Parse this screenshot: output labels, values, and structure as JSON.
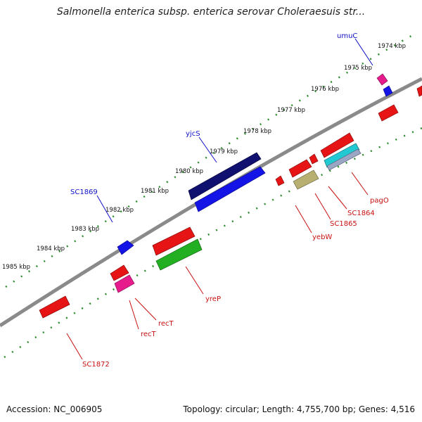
{
  "title": "Salmonella enterica subsp. enterica serovar Choleraesuis str...",
  "footer": {
    "accession": "Accession: NC_006905",
    "summary": "Topology: circular; Length: 4,755,700 bp; Genes: 4,516"
  },
  "colors": {
    "backbone": "#8a8a8a",
    "ticks": "#2e8b2e",
    "plus_label": "#1010c8",
    "minus_label": "#c81010"
  },
  "kbp_labels": [
    "1974 kbp",
    "1975 kbp",
    "1976 kbp",
    "1977 kbp",
    "1978 kbp",
    "1979 kbp",
    "1980 kbp",
    "1981 kbp",
    "1982 kbp",
    "1983 kbp",
    "1984 kbp",
    "1985 kbp"
  ],
  "gene_labels": {
    "plus": [
      "umuC",
      "yjcS",
      "SC1869"
    ],
    "minus": [
      "pagO",
      "SC1864",
      "SC1865",
      "yebW",
      "yreP",
      "recT",
      "recT",
      "SC1872"
    ]
  }
}
